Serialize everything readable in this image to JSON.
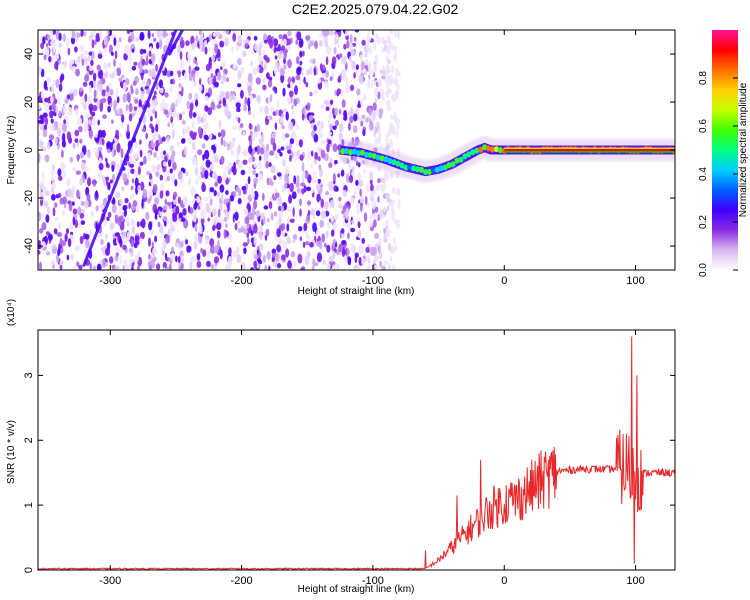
{
  "title": "C2E2.2025.079.04.22.G02",
  "chart_data": [
    {
      "type": "heatmap",
      "name": "spectrogram",
      "xlabel": "Height of straight line (km)",
      "ylabel": "Frequency (Hz)",
      "xlim": [
        -355,
        130
      ],
      "ylim": [
        -50,
        50
      ],
      "xticks": [
        -300,
        -200,
        -100,
        0,
        100
      ],
      "yticks": [
        -40,
        -20,
        0,
        20,
        40
      ],
      "xtick_labels": [
        "-300",
        "-200",
        "-100",
        "0",
        "100"
      ],
      "ytick_labels": [
        "-40",
        "-20",
        "0",
        "20",
        "40"
      ],
      "colorbar": {
        "label": "Normalized spectral amplitude",
        "range": [
          0,
          1
        ],
        "ticks": [
          0.0,
          0.2,
          0.4,
          0.6,
          0.8
        ],
        "tick_labels": [
          "0.0",
          "0.2",
          "0.4",
          "0.6",
          "0.8"
        ],
        "colormap": [
          "#ffffff",
          "#d8b8f0",
          "#8a2be2",
          "#3f00ff",
          "#0060ff",
          "#00d0ff",
          "#00ff80",
          "#40ff00",
          "#c8ff00",
          "#ffd000",
          "#ff7000",
          "#ff0000",
          "#ff1493"
        ]
      },
      "noise_region_x": [
        -355,
        -80
      ],
      "doppler_track": [
        [
          -125,
          0
        ],
        [
          -110,
          -1
        ],
        [
          -90,
          -4
        ],
        [
          -75,
          -7
        ],
        [
          -60,
          -9
        ],
        [
          -50,
          -8
        ],
        [
          -40,
          -6
        ],
        [
          -30,
          -3
        ],
        [
          -20,
          0
        ],
        [
          -15,
          1
        ],
        [
          -10,
          0
        ],
        [
          0,
          0
        ],
        [
          50,
          0
        ],
        [
          90,
          0
        ],
        [
          100,
          0
        ],
        [
          130,
          0
        ]
      ],
      "streaks": [
        [
          [
            -320,
            -48
          ],
          [
            -250,
            50
          ]
        ],
        [
          [
            -255,
            40
          ],
          [
            -245,
            50
          ]
        ]
      ]
    },
    {
      "type": "line",
      "name": "snr",
      "xlabel": "Height of straight line (km)",
      "ylabel": "SNR (10 * v/v)",
      "scale_label": "(x10⁴)",
      "xlim": [
        -355,
        130
      ],
      "ylim": [
        0,
        3.7
      ],
      "xticks": [
        -300,
        -200,
        -100,
        0,
        100
      ],
      "yticks": [
        0,
        1,
        2,
        3
      ],
      "xtick_labels": [
        "-300",
        "-200",
        "-100",
        "0",
        "100"
      ],
      "ytick_labels": [
        "0",
        "1",
        "2",
        "3"
      ],
      "color": "#e8282a",
      "envelope": [
        [
          -355,
          0.02
        ],
        [
          -60,
          0.02
        ],
        [
          -50,
          0.15
        ],
        [
          -40,
          0.35
        ],
        [
          -30,
          0.55
        ],
        [
          -20,
          0.75
        ],
        [
          -10,
          0.95
        ],
        [
          0,
          1.05
        ],
        [
          10,
          1.1
        ],
        [
          20,
          1.25
        ],
        [
          30,
          1.4
        ],
        [
          40,
          1.52
        ],
        [
          60,
          1.56
        ],
        [
          80,
          1.55
        ],
        [
          90,
          1.58
        ],
        [
          95,
          1.55
        ],
        [
          100,
          1.48
        ],
        [
          110,
          1.5
        ],
        [
          130,
          1.5
        ]
      ],
      "spikes": [
        [
          -18,
          1.7
        ],
        [
          -36,
          1.15
        ],
        [
          -60,
          0.3
        ],
        [
          87,
          1.9
        ],
        [
          93,
          2.1
        ],
        [
          97,
          3.6
        ],
        [
          99,
          0.1
        ],
        [
          101,
          3.0
        ],
        [
          104,
          1.85
        ]
      ]
    }
  ]
}
